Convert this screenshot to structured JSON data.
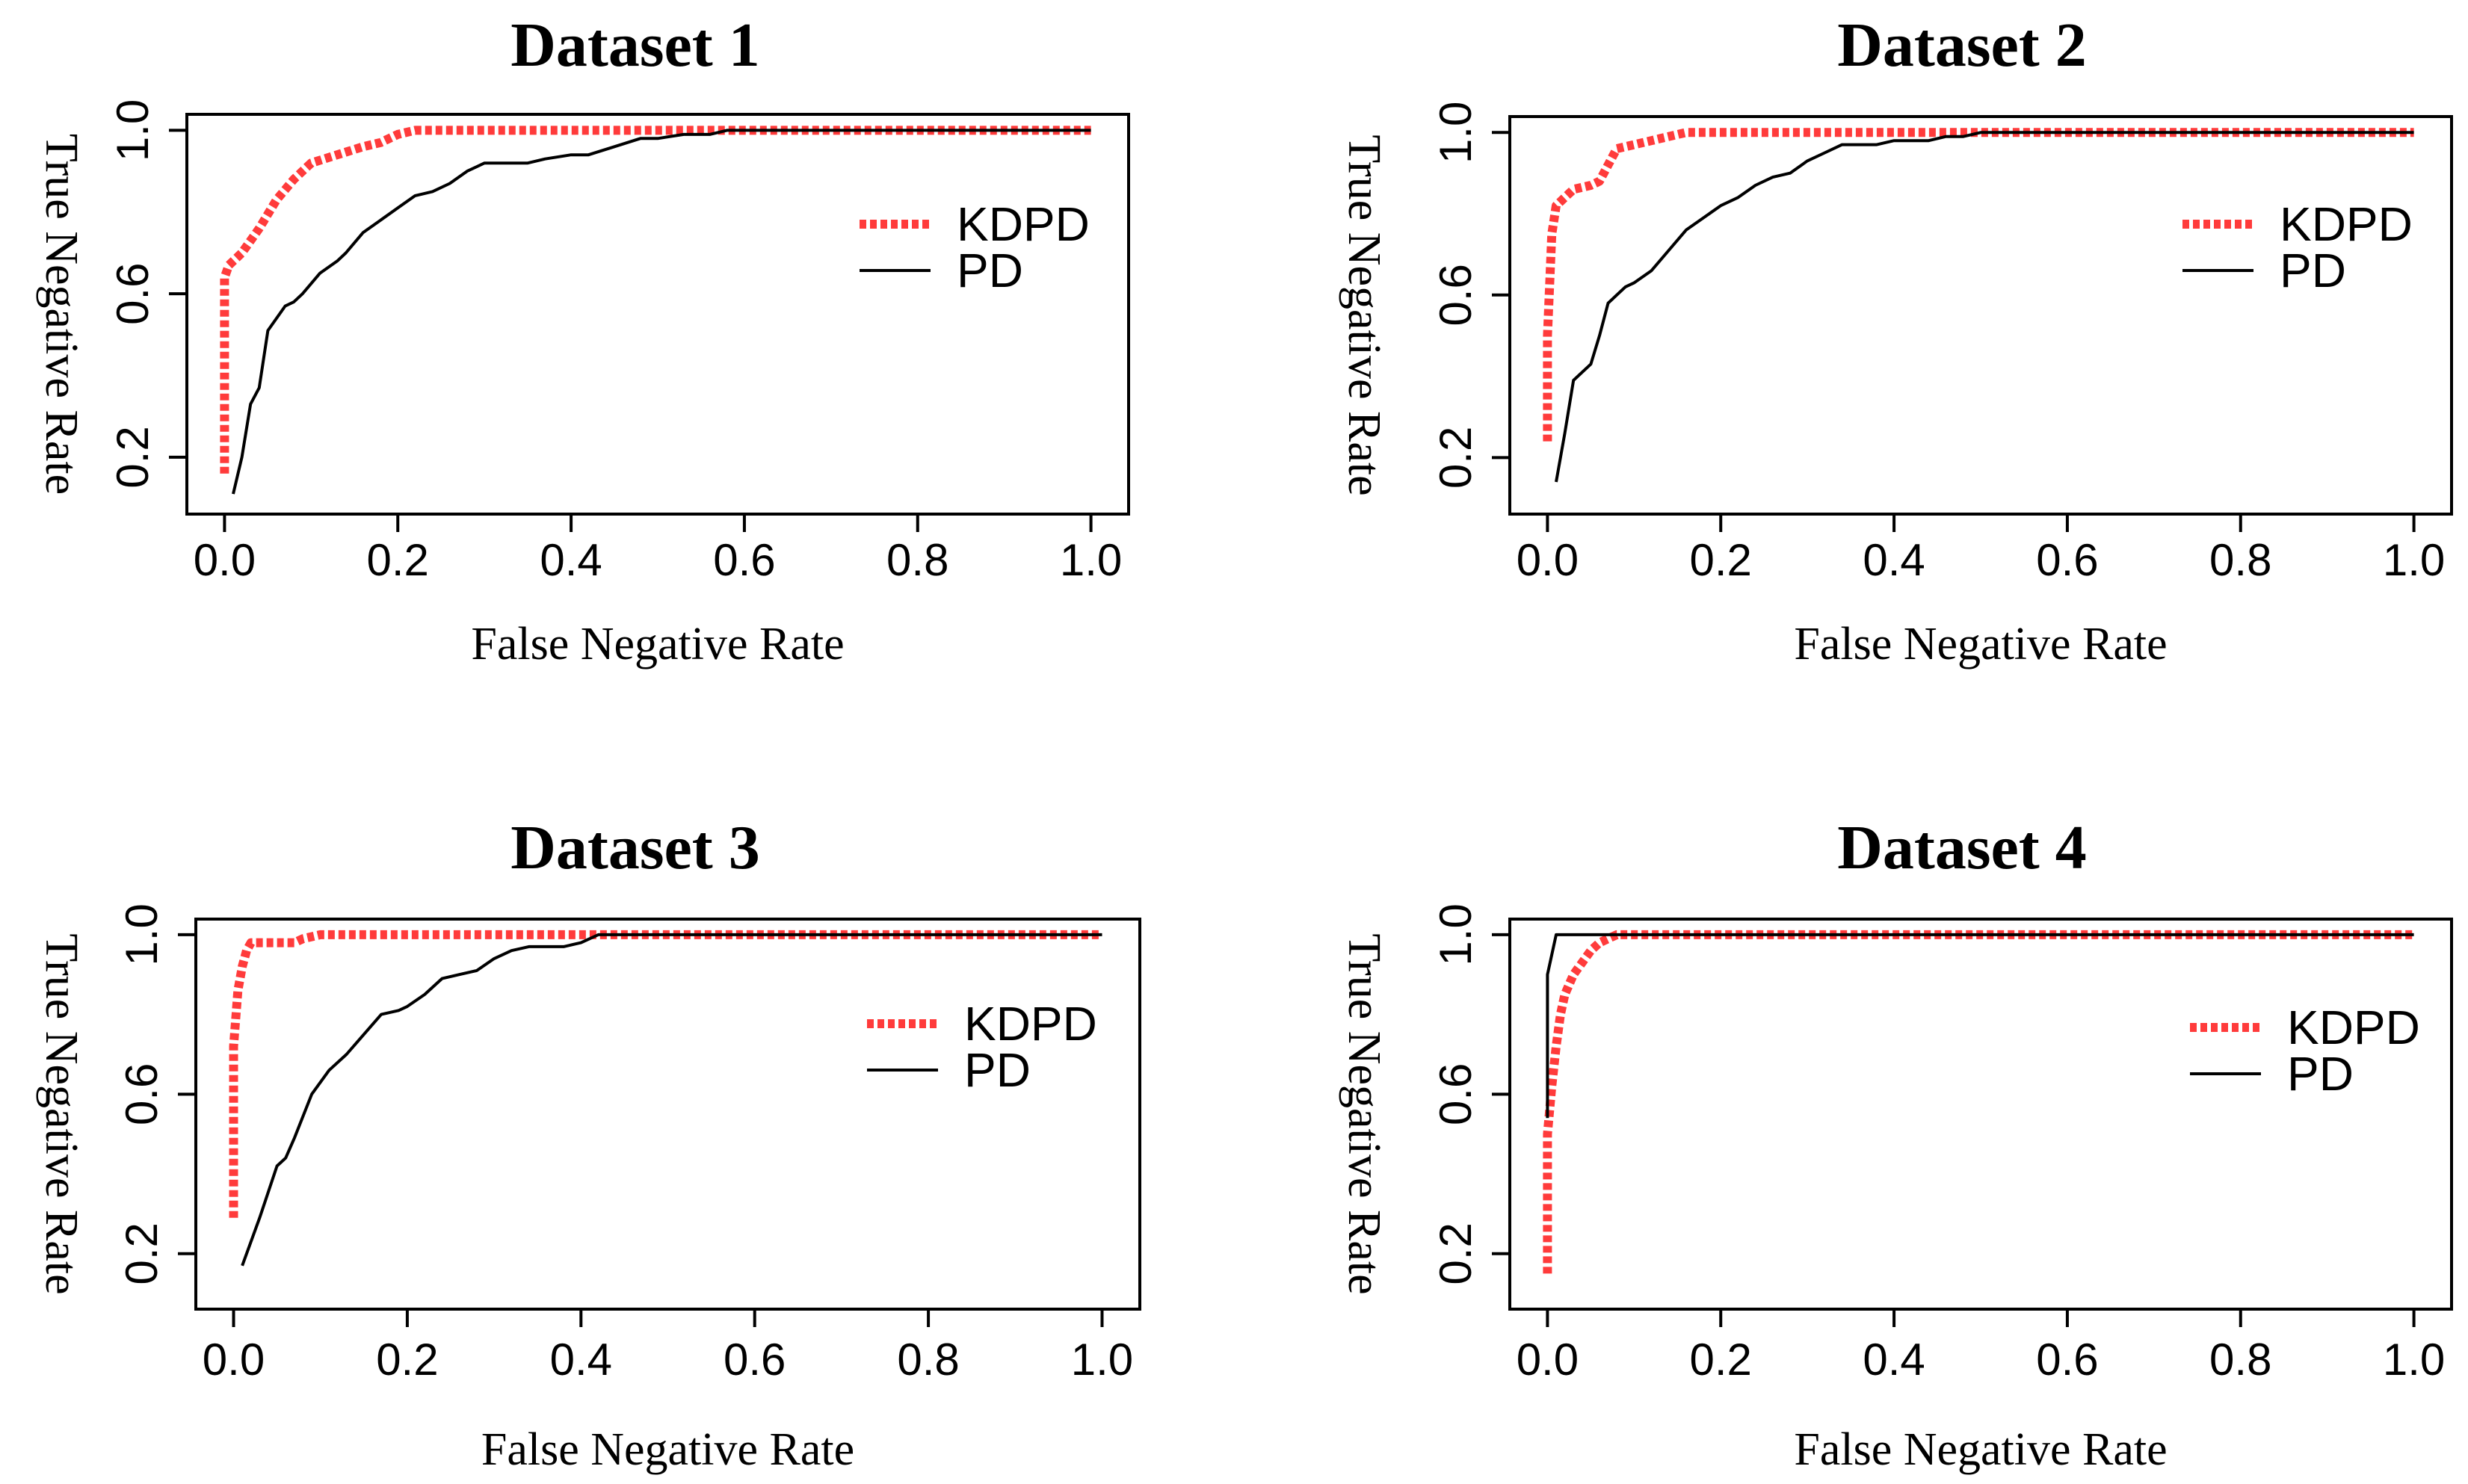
{
  "chart_data": [
    {
      "type": "line",
      "title": "Dataset 1",
      "xlabel": "False Negative Rate",
      "ylabel": "True Negative Rate",
      "xlim": [
        0,
        1
      ],
      "ylim": [
        0.1,
        1
      ],
      "xticks": [
        "0.0",
        "0.2",
        "0.4",
        "0.6",
        "0.8",
        "1.0"
      ],
      "yticks": [
        "0.2",
        "0.6",
        "1.0"
      ],
      "legend_position": "right",
      "series": [
        {
          "name": "KDPD",
          "color": "#ff3b3b",
          "x": [
            0.0,
            0.0,
            0.0,
            0.005,
            0.02,
            0.04,
            0.06,
            0.08,
            0.1,
            0.13,
            0.16,
            0.18,
            0.2,
            0.22,
            0.3,
            0.4,
            0.5,
            0.6,
            0.7,
            0.8,
            0.9,
            1.0
          ],
          "y": [
            0.16,
            0.45,
            0.64,
            0.67,
            0.7,
            0.76,
            0.83,
            0.88,
            0.92,
            0.94,
            0.96,
            0.97,
            0.99,
            1.0,
            1.0,
            1.0,
            1.0,
            1.0,
            1.0,
            1.0,
            1.0,
            1.0
          ]
        },
        {
          "name": "PD",
          "color": "#000000",
          "x": [
            0.01,
            0.02,
            0.03,
            0.04,
            0.05,
            0.07,
            0.08,
            0.09,
            0.11,
            0.13,
            0.14,
            0.16,
            0.18,
            0.2,
            0.22,
            0.24,
            0.26,
            0.28,
            0.3,
            0.32,
            0.35,
            0.37,
            0.4,
            0.42,
            0.45,
            0.48,
            0.5,
            0.53,
            0.56,
            0.58,
            0.6,
            0.7,
            0.8,
            0.9,
            1.0
          ],
          "y": [
            0.11,
            0.2,
            0.33,
            0.37,
            0.51,
            0.57,
            0.58,
            0.6,
            0.65,
            0.68,
            0.7,
            0.75,
            0.78,
            0.81,
            0.84,
            0.85,
            0.87,
            0.9,
            0.92,
            0.92,
            0.92,
            0.93,
            0.94,
            0.94,
            0.96,
            0.98,
            0.98,
            0.99,
            0.99,
            1.0,
            1.0,
            1.0,
            1.0,
            1.0,
            1.0
          ]
        }
      ]
    },
    {
      "type": "line",
      "title": "Dataset 2",
      "xlabel": "False Negative Rate",
      "ylabel": "True Negative Rate",
      "xlim": [
        0,
        1
      ],
      "ylim": [
        0.1,
        1
      ],
      "xticks": [
        "0.0",
        "0.2",
        "0.4",
        "0.6",
        "0.8",
        "1.0"
      ],
      "yticks": [
        "0.2",
        "0.6",
        "1.0"
      ],
      "legend_position": "right",
      "series": [
        {
          "name": "KDPD",
          "color": "#ff3b3b",
          "x": [
            0.0,
            0.0,
            0.005,
            0.01,
            0.02,
            0.03,
            0.05,
            0.06,
            0.07,
            0.08,
            0.1,
            0.12,
            0.14,
            0.16,
            0.2,
            0.3,
            0.4,
            0.5,
            0.6,
            0.7,
            0.8,
            0.9,
            1.0
          ],
          "y": [
            0.24,
            0.5,
            0.75,
            0.82,
            0.84,
            0.86,
            0.87,
            0.88,
            0.92,
            0.96,
            0.97,
            0.98,
            0.99,
            1.0,
            1.0,
            1.0,
            1.0,
            1.0,
            1.0,
            1.0,
            1.0,
            1.0,
            1.0
          ]
        },
        {
          "name": "PD",
          "color": "#000000",
          "x": [
            0.01,
            0.02,
            0.03,
            0.05,
            0.06,
            0.07,
            0.09,
            0.1,
            0.12,
            0.14,
            0.16,
            0.18,
            0.2,
            0.22,
            0.24,
            0.26,
            0.28,
            0.3,
            0.32,
            0.34,
            0.36,
            0.38,
            0.4,
            0.42,
            0.44,
            0.46,
            0.48,
            0.5,
            0.6,
            0.7,
            0.8,
            0.9,
            1.0
          ],
          "y": [
            0.14,
            0.26,
            0.39,
            0.43,
            0.5,
            0.58,
            0.62,
            0.63,
            0.66,
            0.71,
            0.76,
            0.79,
            0.82,
            0.84,
            0.87,
            0.89,
            0.9,
            0.93,
            0.95,
            0.97,
            0.97,
            0.97,
            0.98,
            0.98,
            0.98,
            0.99,
            0.99,
            1.0,
            1.0,
            1.0,
            1.0,
            1.0,
            1.0
          ]
        }
      ]
    },
    {
      "type": "line",
      "title": "Dataset 3",
      "xlabel": "False Negative Rate",
      "ylabel": "True Negative Rate",
      "xlim": [
        0,
        1
      ],
      "ylim": [
        0.1,
        1
      ],
      "xticks": [
        "0.0",
        "0.2",
        "0.4",
        "0.6",
        "0.8",
        "1.0"
      ],
      "yticks": [
        "0.2",
        "0.6",
        "1.0"
      ],
      "legend_position": "right",
      "series": [
        {
          "name": "KDPD",
          "color": "#ff3b3b",
          "x": [
            0.0,
            0.0,
            0.0,
            0.005,
            0.01,
            0.015,
            0.02,
            0.03,
            0.05,
            0.07,
            0.08,
            0.1,
            0.2,
            0.3,
            0.4,
            0.5,
            0.6,
            0.7,
            0.8,
            0.9,
            1.0
          ],
          "y": [
            0.29,
            0.55,
            0.72,
            0.86,
            0.92,
            0.96,
            0.98,
            0.98,
            0.98,
            0.98,
            0.99,
            1.0,
            1.0,
            1.0,
            1.0,
            1.0,
            1.0,
            1.0,
            1.0,
            1.0,
            1.0
          ]
        },
        {
          "name": "PD",
          "color": "#000000",
          "x": [
            0.01,
            0.03,
            0.05,
            0.06,
            0.07,
            0.09,
            0.11,
            0.13,
            0.15,
            0.17,
            0.19,
            0.2,
            0.22,
            0.24,
            0.26,
            0.28,
            0.3,
            0.32,
            0.34,
            0.36,
            0.38,
            0.4,
            0.42,
            0.5,
            0.6,
            0.7,
            0.8,
            0.9,
            1.0
          ],
          "y": [
            0.17,
            0.29,
            0.42,
            0.44,
            0.49,
            0.6,
            0.66,
            0.7,
            0.75,
            0.8,
            0.81,
            0.82,
            0.85,
            0.89,
            0.9,
            0.91,
            0.94,
            0.96,
            0.97,
            0.97,
            0.97,
            0.98,
            1.0,
            1.0,
            1.0,
            1.0,
            1.0,
            1.0,
            1.0
          ]
        }
      ]
    },
    {
      "type": "line",
      "title": "Dataset 4",
      "xlabel": "False Negative Rate",
      "ylabel": "True Negative Rate",
      "xlim": [
        0,
        1
      ],
      "ylim": [
        0.1,
        1
      ],
      "xticks": [
        "0.0",
        "0.2",
        "0.4",
        "0.6",
        "0.8",
        "1.0"
      ],
      "yticks": [
        "0.2",
        "0.6",
        "1.0"
      ],
      "legend_position": "right",
      "series": [
        {
          "name": "KDPD",
          "color": "#ff3b3b",
          "x": [
            0.0,
            0.0,
            0.0,
            0.005,
            0.01,
            0.015,
            0.02,
            0.03,
            0.04,
            0.05,
            0.06,
            0.07,
            0.08,
            0.1,
            0.2,
            0.3,
            0.4,
            0.5,
            0.6,
            0.7,
            0.8,
            0.9,
            1.0
          ],
          "y": [
            0.15,
            0.35,
            0.5,
            0.62,
            0.72,
            0.8,
            0.85,
            0.9,
            0.93,
            0.96,
            0.98,
            0.99,
            1.0,
            1.0,
            1.0,
            1.0,
            1.0,
            1.0,
            1.0,
            1.0,
            1.0,
            1.0,
            1.0
          ]
        },
        {
          "name": "PD",
          "color": "#000000",
          "x": [
            0.0,
            0.0,
            0.005,
            0.01,
            0.02,
            0.05,
            0.08,
            0.2,
            0.4,
            0.6,
            0.8,
            1.0
          ],
          "y": [
            0.54,
            0.9,
            0.95,
            1.0,
            1.0,
            1.0,
            1.0,
            1.0,
            1.0,
            1.0,
            1.0,
            1.0
          ]
        }
      ]
    }
  ]
}
